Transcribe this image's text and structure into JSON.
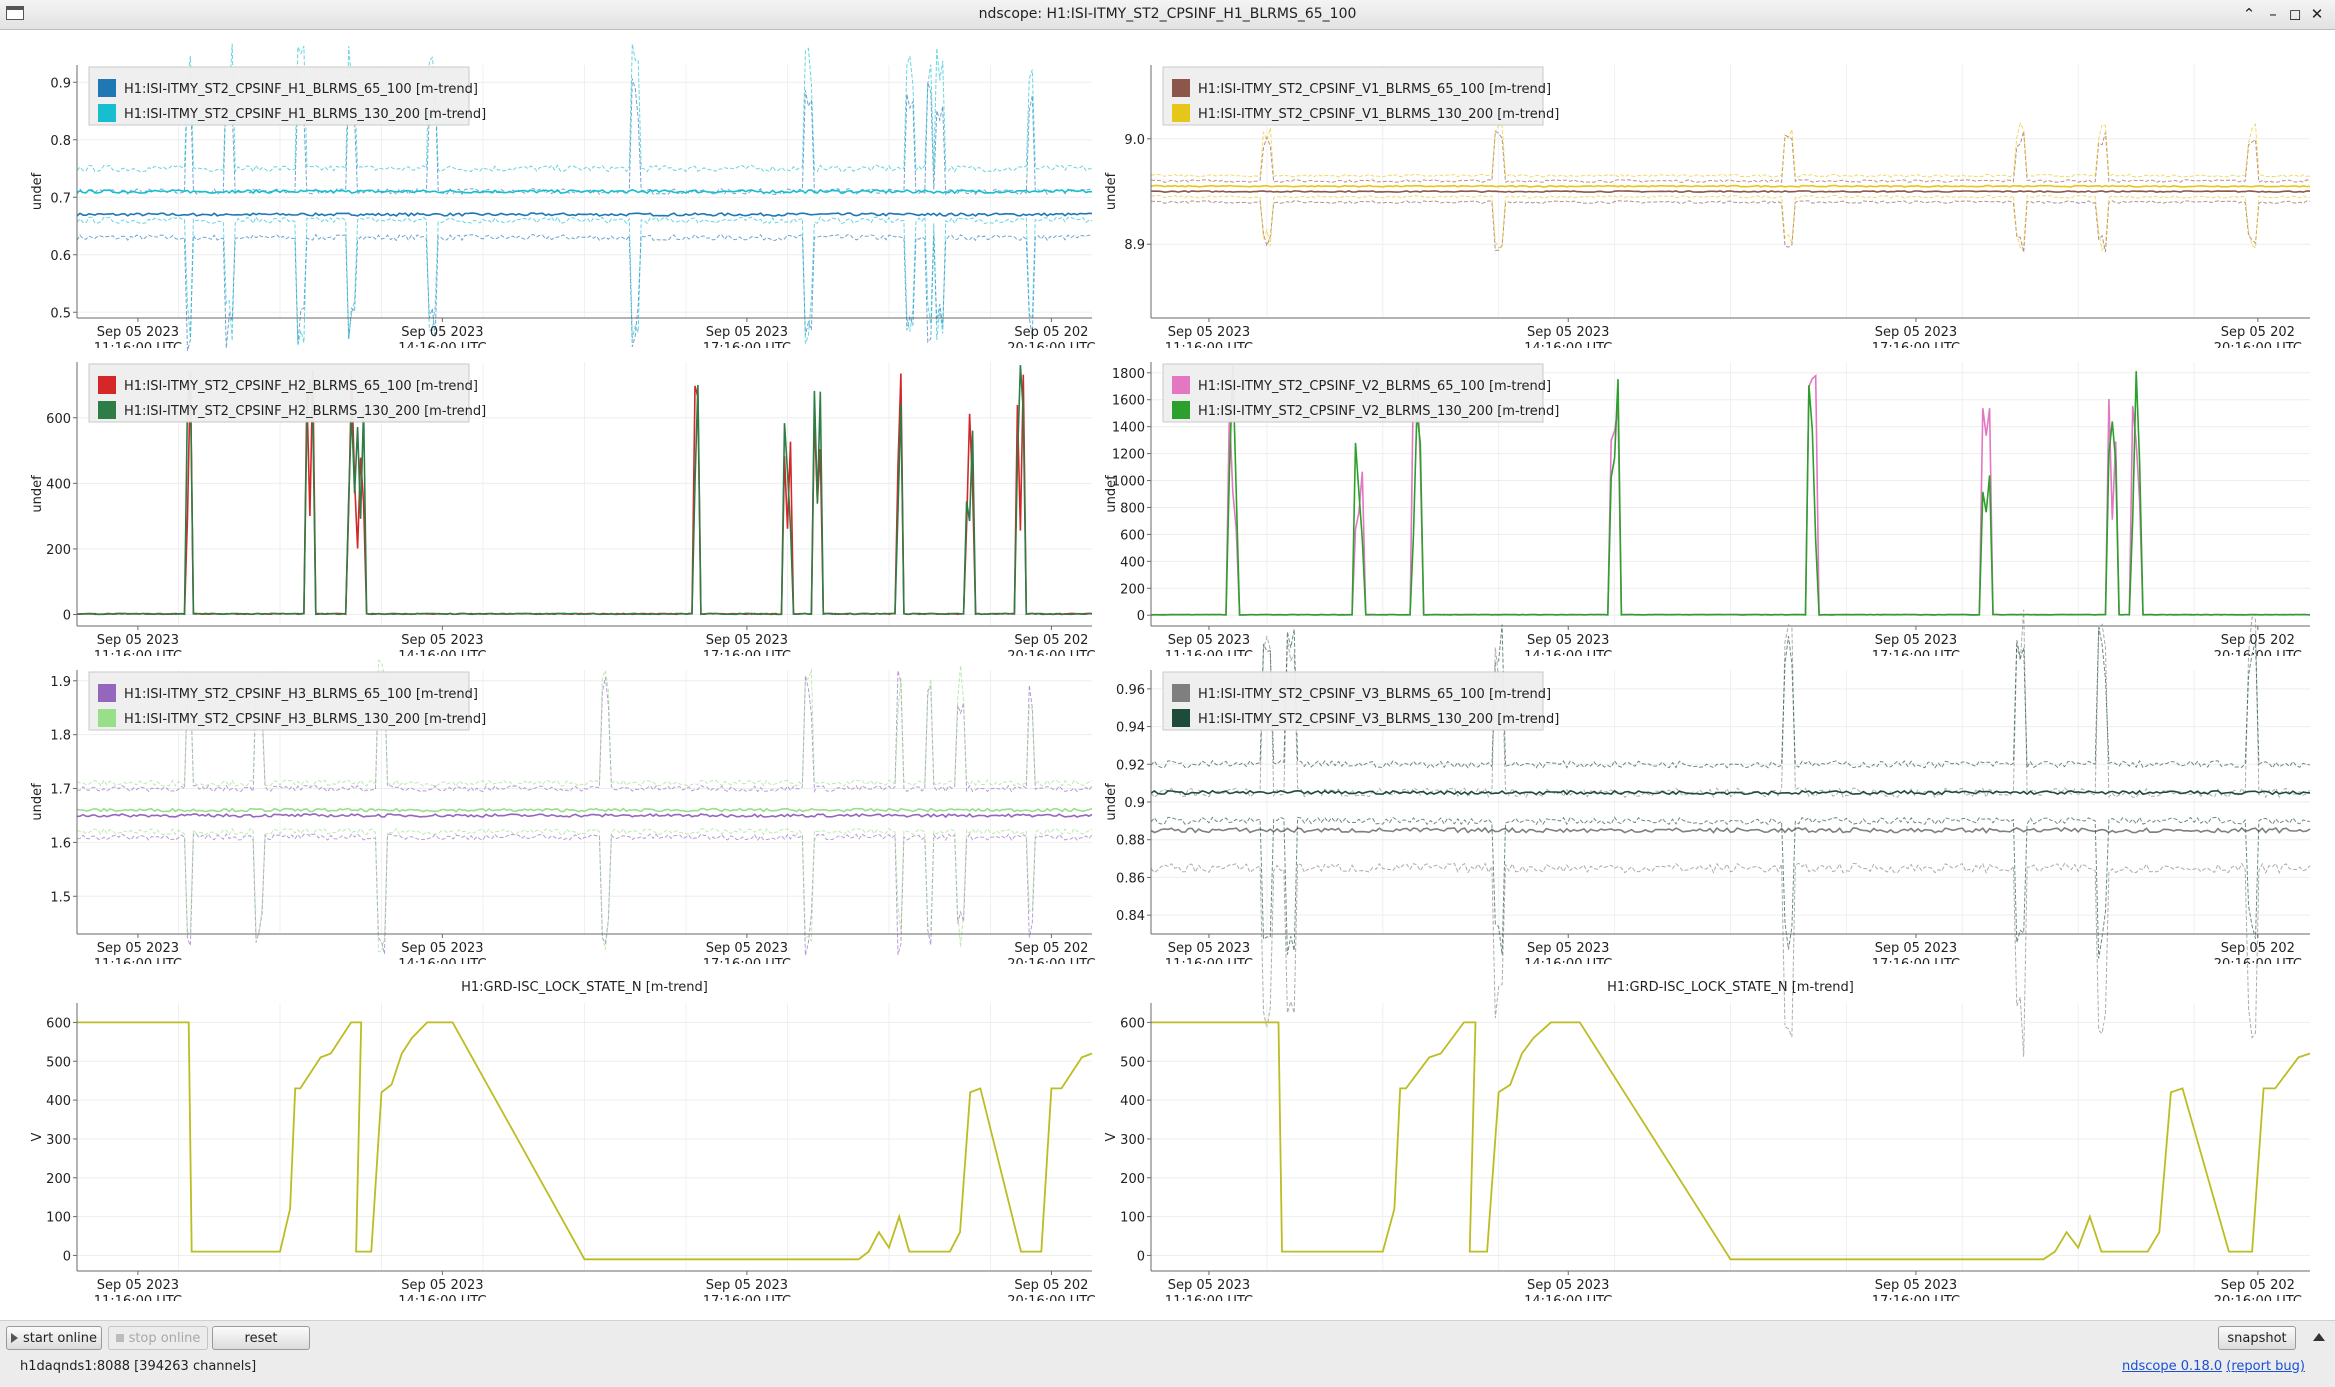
{
  "window": {
    "title": "ndscope: H1:ISI-ITMY_ST2_CPSINF_H1_BLRMS_65_100"
  },
  "time_axis": {
    "tick_dates": [
      "Sep 05 2023",
      "Sep 05 2023",
      "Sep 05 2023",
      "Sep 05 202"
    ],
    "tick_dates_right": [
      "Sep 05 2023",
      "Sep 05 2023",
      "Sep 05 2023",
      "Sep 05 202"
    ],
    "tick_times": [
      "11:16:00 UTC",
      "14:16:00 UTC",
      "17:16:00 UTC",
      "20:16:00 UTC"
    ]
  },
  "toolbar": {
    "start_online": "start online",
    "stop_online": "stop online",
    "reset": "reset",
    "snapshot": "snapshot"
  },
  "status": {
    "server": "h1daqnds1:8088  [394263 channels]",
    "version": "ndscope 0.18.0",
    "report_bug": "(report bug)"
  },
  "chart_data": [
    {
      "type": "line",
      "ylabel": "undef",
      "ylim": [
        0.49,
        0.93
      ],
      "yticks": [
        "0.5",
        "0.6",
        "0.7",
        "0.8",
        "0.9"
      ],
      "ytick_values": [
        0.5,
        0.6,
        0.7,
        0.8,
        0.9
      ],
      "legend_placement": "top-left",
      "series": [
        {
          "name": "H1:ISI-ITMY_ST2_CPSINF_H1_BLRMS_65_100 [m-trend]",
          "color": "#1f77b4",
          "mean": 0.67,
          "band": [
            0.63,
            0.71
          ]
        },
        {
          "name": "H1:ISI-ITMY_ST2_CPSINF_H1_BLRMS_130_200 [m-trend]",
          "color": "#17becf",
          "mean": 0.71,
          "band": [
            0.66,
            0.75
          ]
        }
      ]
    },
    {
      "type": "line",
      "ylabel": "undef",
      "ylim": [
        8.83,
        9.07
      ],
      "yticks": [
        "8.9",
        "9.0"
      ],
      "ytick_values": [
        8.9,
        9.0
      ],
      "legend_placement": "top-left",
      "series": [
        {
          "name": "H1:ISI-ITMY_ST2_CPSINF_V1_BLRMS_65_100 [m-trend]",
          "color": "#8c564b",
          "mean": 8.95,
          "band": [
            8.94,
            8.96
          ]
        },
        {
          "name": "H1:ISI-ITMY_ST2_CPSINF_V1_BLRMS_130_200 [m-trend]",
          "color": "#e6c619",
          "mean": 8.955,
          "band": [
            8.945,
            8.965
          ]
        }
      ]
    },
    {
      "type": "line",
      "ylabel": "undef",
      "ylim": [
        -35,
        770
      ],
      "yticks": [
        "0",
        "200",
        "400",
        "600"
      ],
      "ytick_values": [
        0,
        200,
        400,
        600
      ],
      "legend_placement": "top-left",
      "series": [
        {
          "name": "H1:ISI-ITMY_ST2_CPSINF_H2_BLRMS_65_100 [m-trend]",
          "color": "#d62728",
          "mean": 2,
          "band": [
            0,
            4
          ]
        },
        {
          "name": "H1:ISI-ITMY_ST2_CPSINF_H2_BLRMS_130_200 [m-trend]",
          "color": "#2e7d46",
          "mean": 2,
          "band": [
            0,
            4
          ]
        }
      ]
    },
    {
      "type": "line",
      "ylabel": "undef",
      "ylim": [
        -80,
        1880
      ],
      "yticks": [
        "0",
        "200",
        "400",
        "600",
        "800",
        "1000",
        "1200",
        "1400",
        "1600",
        "1800"
      ],
      "ytick_values": [
        0,
        200,
        400,
        600,
        800,
        1000,
        1200,
        1400,
        1600,
        1800
      ],
      "legend_placement": "top-left",
      "series": [
        {
          "name": "H1:ISI-ITMY_ST2_CPSINF_V2_BLRMS_65_100 [m-trend]",
          "color": "#e377c2",
          "mean": 4,
          "band": [
            0,
            8
          ]
        },
        {
          "name": "H1:ISI-ITMY_ST2_CPSINF_V2_BLRMS_130_200 [m-trend]",
          "color": "#2ca02c",
          "mean": 4,
          "band": [
            0,
            8
          ]
        }
      ]
    },
    {
      "type": "line",
      "ylabel": "undef",
      "ylim": [
        1.43,
        1.92
      ],
      "yticks": [
        "1.5",
        "1.6",
        "1.7",
        "1.8",
        "1.9"
      ],
      "ytick_values": [
        1.5,
        1.6,
        1.7,
        1.8,
        1.9
      ],
      "legend_placement": "top-left",
      "series": [
        {
          "name": "H1:ISI-ITMY_ST2_CPSINF_H3_BLRMS_65_100 [m-trend]",
          "color": "#9467bd",
          "mean": 1.65,
          "band": [
            1.61,
            1.7
          ]
        },
        {
          "name": "H1:ISI-ITMY_ST2_CPSINF_H3_BLRMS_130_200 [m-trend]",
          "color": "#98df8a",
          "mean": 1.66,
          "band": [
            1.62,
            1.71
          ]
        }
      ]
    },
    {
      "type": "line",
      "ylabel": "undef",
      "ylim": [
        0.83,
        0.97
      ],
      "yticks": [
        "0.84",
        "0.86",
        "0.88",
        "0.9",
        "0.92",
        "0.94",
        "0.96"
      ],
      "ytick_values": [
        0.84,
        0.86,
        0.88,
        0.9,
        0.92,
        0.94,
        0.96
      ],
      "legend_placement": "top-left",
      "series": [
        {
          "name": "H1:ISI-ITMY_ST2_CPSINF_V3_BLRMS_65_100 [m-trend]",
          "color": "#7f7f7f",
          "mean": 0.885,
          "band": [
            0.865,
            0.905
          ]
        },
        {
          "name": "H1:ISI-ITMY_ST2_CPSINF_V3_BLRMS_130_200 [m-trend]",
          "color": "#1d4d3a",
          "mean": 0.905,
          "band": [
            0.89,
            0.92
          ]
        }
      ]
    },
    {
      "type": "line",
      "title": "H1:GRD-ISC_LOCK_STATE_N [m-trend]",
      "ylabel": "V",
      "ylim": [
        -40,
        650
      ],
      "yticks": [
        "0",
        "100",
        "200",
        "300",
        "400",
        "500",
        "600"
      ],
      "ytick_values": [
        0,
        100,
        200,
        300,
        400,
        500,
        600
      ],
      "series": [
        {
          "name": "H1:GRD-ISC_LOCK_STATE_N [m-trend]",
          "color": "#bcbd22",
          "x": [
            0,
            0.11,
            0.113,
            0.2,
            0.21,
            0.215,
            0.22,
            0.24,
            0.25,
            0.26,
            0.27,
            0.28,
            0.275,
            0.29,
            0.3,
            0.31,
            0.32,
            0.33,
            0.345,
            0.355,
            0.37,
            0.5,
            0.6,
            0.77,
            0.78,
            0.79,
            0.8,
            0.81,
            0.82,
            0.86,
            0.87,
            0.88,
            0.89,
            0.93,
            0.935,
            0.95,
            0.96,
            0.97,
            0.99,
            1.0
          ],
          "values": [
            600,
            600,
            10,
            10,
            120,
            430,
            430,
            510,
            520,
            560,
            600,
            600,
            10,
            10,
            420,
            440,
            520,
            560,
            600,
            600,
            600,
            -10,
            -10,
            -10,
            10,
            60,
            20,
            100,
            10,
            10,
            60,
            420,
            430,
            10,
            10,
            10,
            430,
            430,
            510,
            520
          ]
        }
      ]
    },
    {
      "type": "line",
      "title": "H1:GRD-ISC_LOCK_STATE_N [m-trend]",
      "ylabel": "V",
      "ylim": [
        -40,
        650
      ],
      "yticks": [
        "0",
        "100",
        "200",
        "300",
        "400",
        "500",
        "600"
      ],
      "ytick_values": [
        0,
        100,
        200,
        300,
        400,
        500,
        600
      ],
      "series": [
        {
          "name": "H1:GRD-ISC_LOCK_STATE_N [m-trend]",
          "color": "#bcbd22",
          "x": [
            0,
            0.11,
            0.113,
            0.2,
            0.21,
            0.215,
            0.22,
            0.24,
            0.25,
            0.26,
            0.27,
            0.28,
            0.275,
            0.29,
            0.3,
            0.31,
            0.32,
            0.33,
            0.345,
            0.355,
            0.37,
            0.5,
            0.6,
            0.77,
            0.78,
            0.79,
            0.8,
            0.81,
            0.82,
            0.86,
            0.87,
            0.88,
            0.89,
            0.93,
            0.935,
            0.95,
            0.96,
            0.97,
            0.99,
            1.0
          ],
          "values": [
            600,
            600,
            10,
            10,
            120,
            430,
            430,
            510,
            520,
            560,
            600,
            600,
            10,
            10,
            420,
            440,
            520,
            560,
            600,
            600,
            600,
            -10,
            -10,
            -10,
            10,
            60,
            20,
            100,
            10,
            10,
            60,
            420,
            430,
            10,
            10,
            10,
            430,
            430,
            510,
            520
          ]
        }
      ]
    }
  ]
}
